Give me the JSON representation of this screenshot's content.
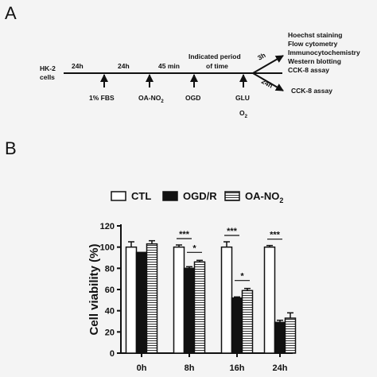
{
  "panel_a": {
    "letter": "A",
    "start_label": [
      "HK-2",
      "cells"
    ],
    "segments": [
      "24h",
      "24h",
      "45 min",
      "Indicated period",
      "of time"
    ],
    "treatments": [
      "1% FBS",
      "OA-NO",
      "OGD",
      "GLU",
      "O"
    ],
    "treatment_sub": [
      "2",
      "2"
    ],
    "branch_labels": [
      "3h",
      "24h"
    ],
    "assays_upper": [
      "Hoechst staining",
      "Flow cytometry",
      "Immunocytochemistry",
      "Western blotting",
      "CCK-8 assay"
    ],
    "assays_lower": [
      "CCK-8 assay"
    ]
  },
  "panel_b": {
    "letter": "B",
    "chart_data": {
      "type": "bar",
      "categories": [
        "0h",
        "8h",
        "16h",
        "24h"
      ],
      "series": [
        {
          "name": "CTL",
          "values": [
            100,
            100,
            100,
            100
          ],
          "errors": [
            5,
            2,
            5,
            1.5
          ],
          "fill": "#ffffff"
        },
        {
          "name": "OGD/R",
          "values": [
            95,
            80,
            52,
            29
          ],
          "errors": [
            0,
            1.5,
            1,
            2
          ],
          "fill": "#111111"
        },
        {
          "name": "OA-NO2",
          "values": [
            103,
            86,
            59,
            33
          ],
          "errors": [
            3,
            1.5,
            2,
            5
          ],
          "fill": "striped"
        }
      ],
      "legend_labels": [
        "CTL",
        "OGD/R",
        "OA-NO"
      ],
      "legend_sub": "2",
      "ylabel": "Cell viability (%)",
      "ylim": [
        0,
        120
      ],
      "yticks": [
        "0",
        "20",
        "40",
        "60",
        "80",
        "100",
        "120"
      ],
      "legend_position": "top",
      "significance": [
        {
          "text": "***",
          "category": 1,
          "pair": "CTL-OGD/R"
        },
        {
          "text": "*",
          "category": 1,
          "pair": "OGD/R-OA-NO2"
        },
        {
          "text": "***",
          "category": 2,
          "pair": "CTL-OGD/R"
        },
        {
          "text": "*",
          "category": 2,
          "pair": "OGD/R-OA-NO2"
        },
        {
          "text": "***",
          "category": 3,
          "pair": "CTL-OGD/R"
        }
      ]
    }
  }
}
